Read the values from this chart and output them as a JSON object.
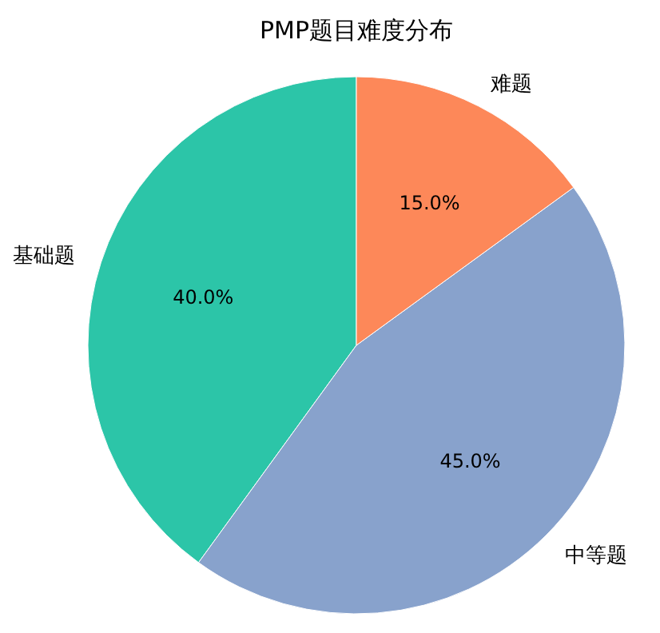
{
  "chart_data": {
    "type": "pie",
    "title": "PMP题目难度分布",
    "categories": [
      "基础题",
      "中等题",
      "难题"
    ],
    "values": [
      40.0,
      45.0,
      15.0
    ],
    "colors": [
      "#2cc5a8",
      "#88a2cc",
      "#fd8859"
    ],
    "value_labels": [
      "40.0%",
      "45.0%",
      "15.0%"
    ],
    "legend": false
  }
}
